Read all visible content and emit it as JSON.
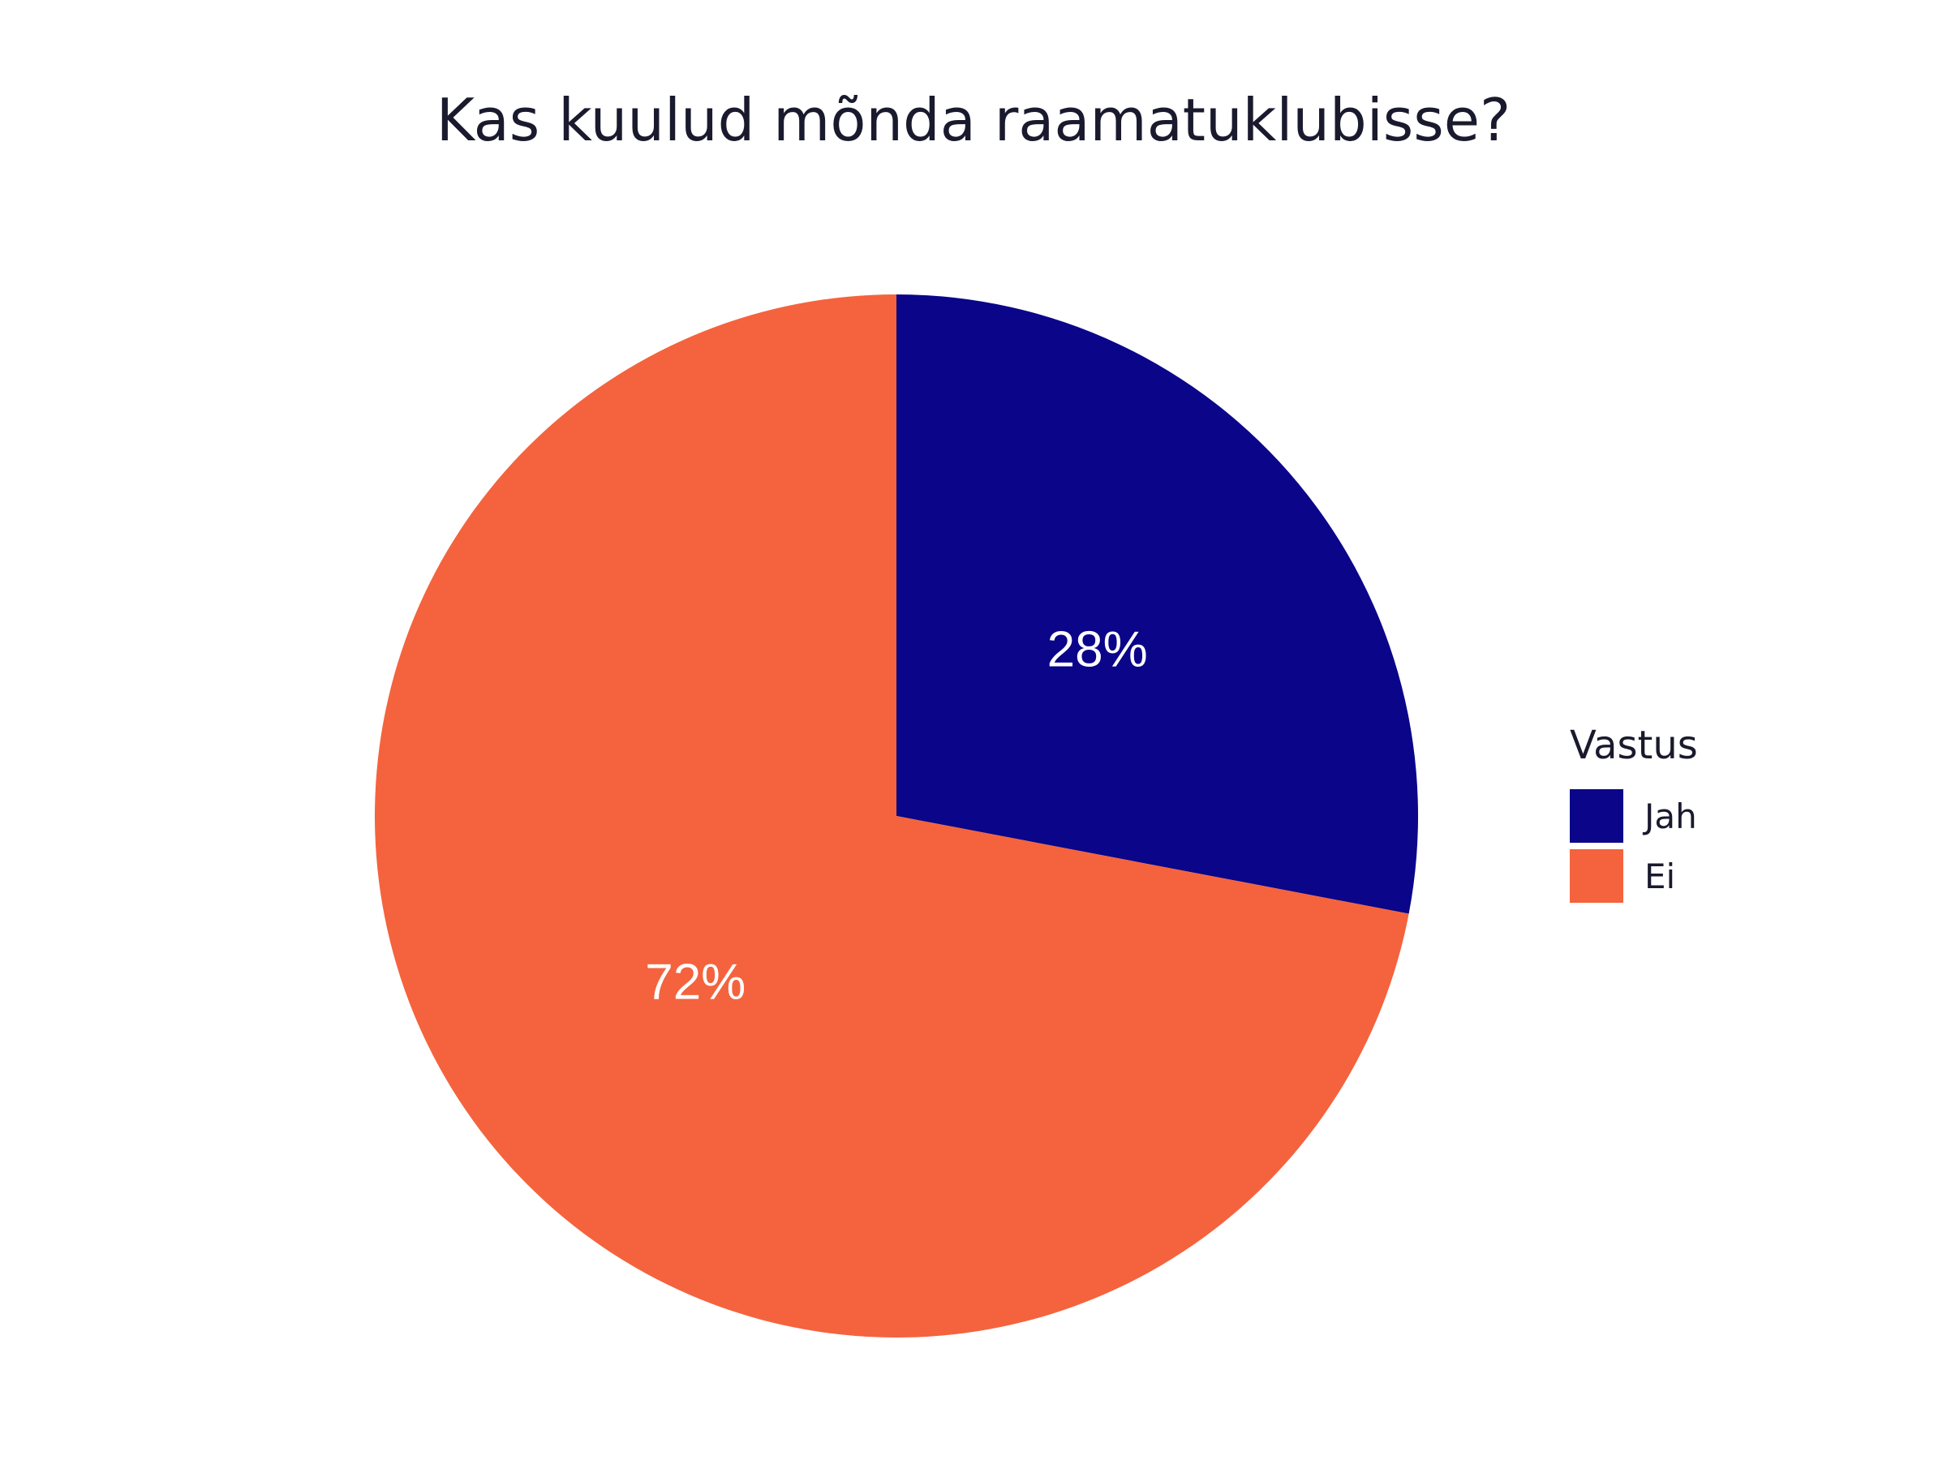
{
  "chart_data": {
    "type": "pie",
    "title": "Kas kuulud mõnda raamatuklubisse?",
    "legend_title": "Vastus",
    "legend_position": "right",
    "start_angle": "12-o'clock",
    "direction": "clockwise",
    "slices": [
      {
        "label": "Jah",
        "value": 28,
        "value_label": "28%",
        "color": "#0A0589"
      },
      {
        "label": "Ei",
        "value": 72,
        "value_label": "72%",
        "color": "#F4633D"
      }
    ],
    "label_color": "#ffffff"
  }
}
